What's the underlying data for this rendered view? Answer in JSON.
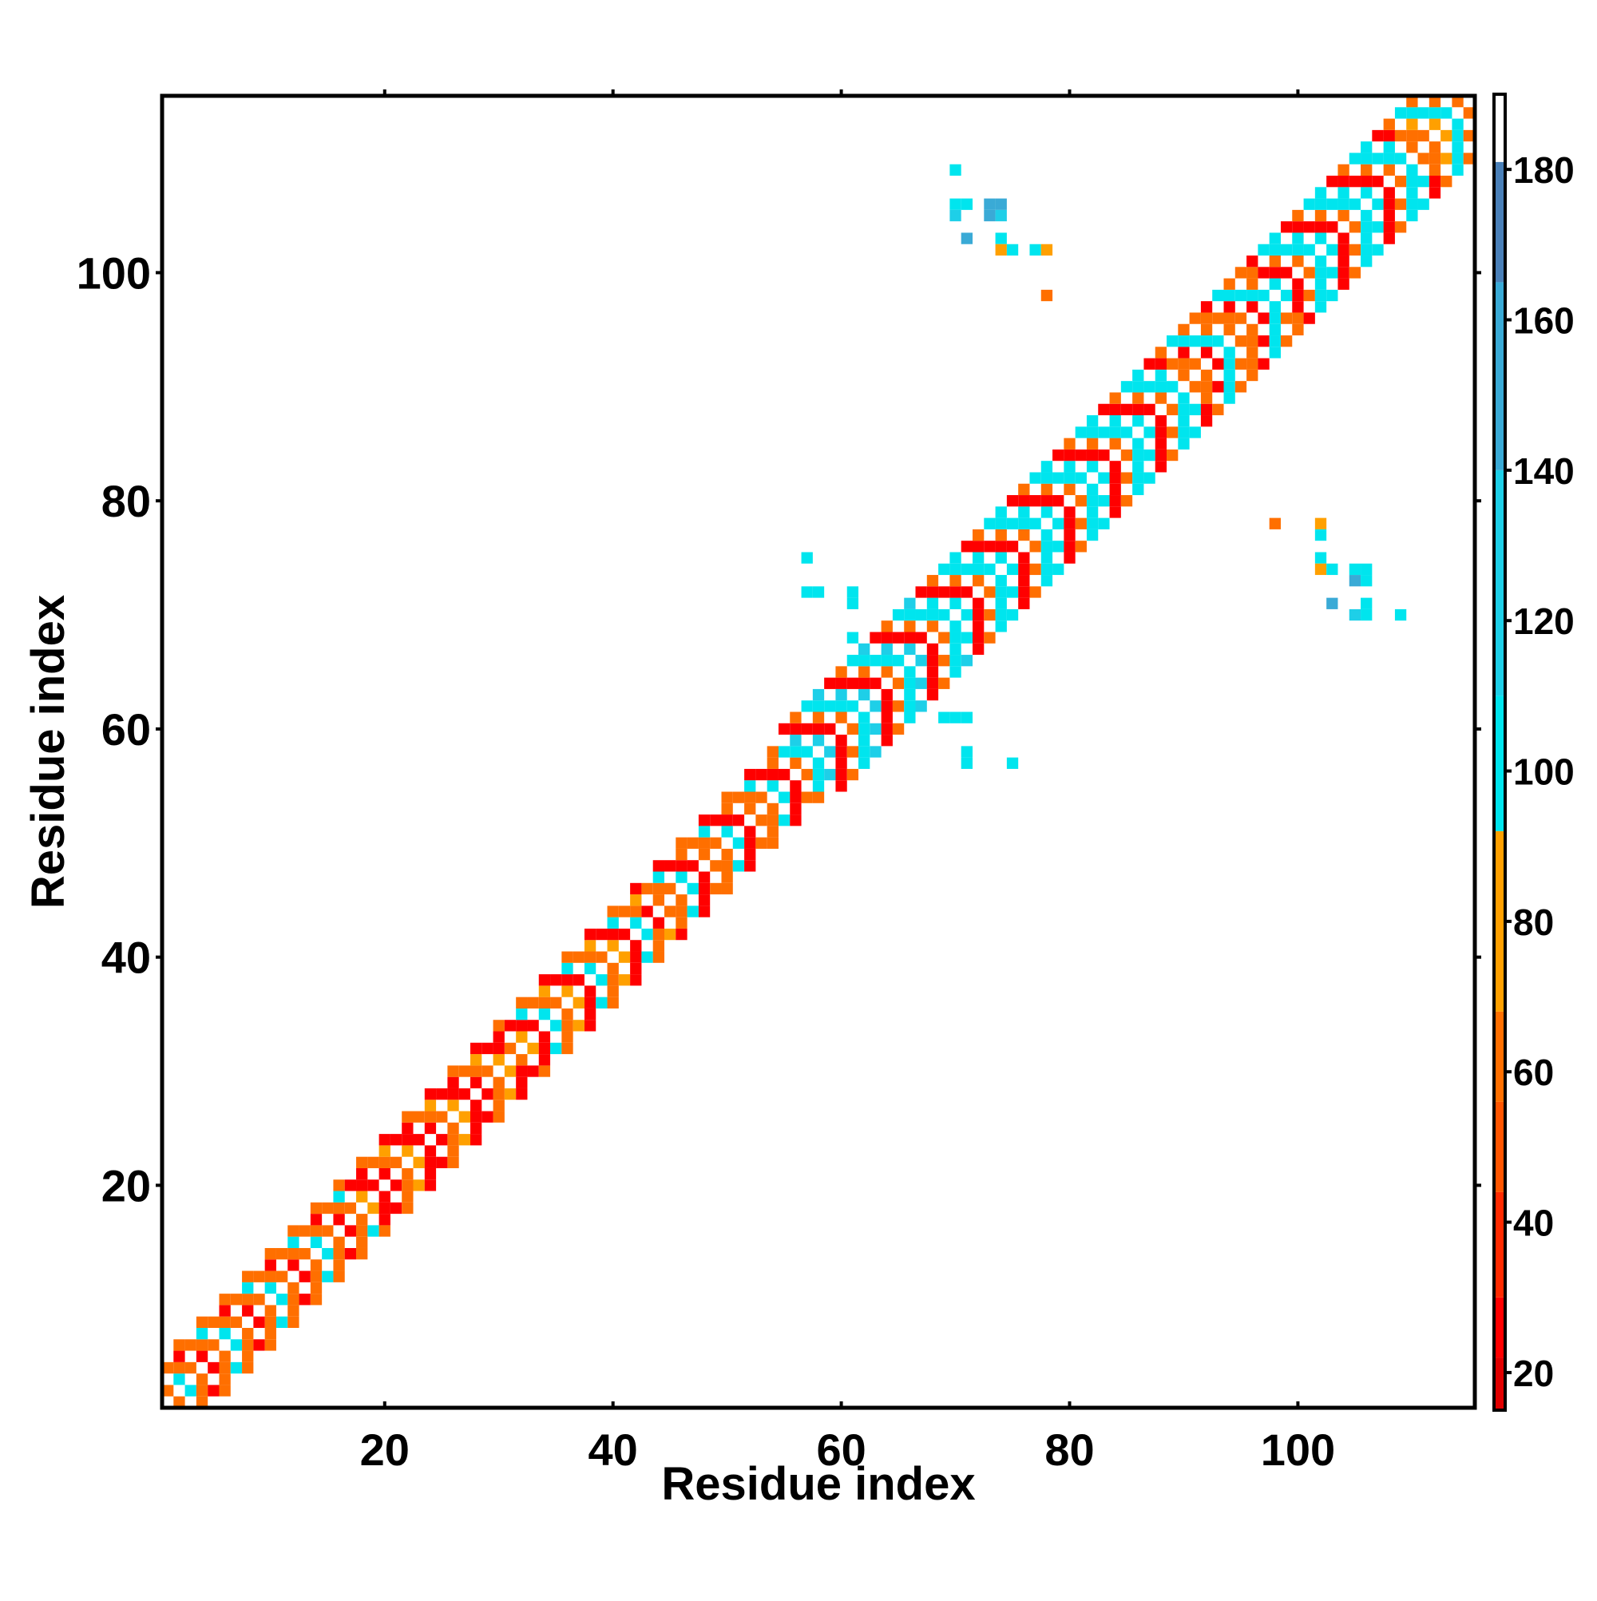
{
  "chart_data": {
    "type": "heatmap",
    "title": "",
    "xlabel": "Residue index",
    "ylabel": "Residue index",
    "xlim": [
      0.5,
      115.5
    ],
    "ylim": [
      0.5,
      115.5
    ],
    "xticks": [
      20,
      40,
      60,
      80,
      100
    ],
    "yticks": [
      20,
      40,
      60,
      80,
      100
    ],
    "colorbar": {
      "range": [
        15,
        190
      ],
      "ticks": [
        20,
        40,
        60,
        80,
        100,
        120,
        140,
        160,
        180
      ],
      "bands": [
        {
          "from": 15,
          "to": 22,
          "color": "#e00000"
        },
        {
          "from": 22,
          "to": 30,
          "color": "#ff0000"
        },
        {
          "from": 30,
          "to": 44,
          "color": "#ff2a00"
        },
        {
          "from": 44,
          "to": 56,
          "color": "#ff5500"
        },
        {
          "from": 56,
          "to": 68,
          "color": "#ff6f00"
        },
        {
          "from": 68,
          "to": 92,
          "color": "#ffa000"
        },
        {
          "from": 92,
          "to": 110,
          "color": "#00e5ee"
        },
        {
          "from": 110,
          "to": 140,
          "color": "#1ecfe8"
        },
        {
          "from": 140,
          "to": 165,
          "color": "#3aaad6"
        },
        {
          "from": 165,
          "to": 181,
          "color": "#4a80b8"
        },
        {
          "from": 181,
          "to": 190,
          "color": "#ffffff"
        }
      ]
    },
    "legend": "colorbar-right",
    "grid": false,
    "cells_description": "Contact map values by residue pair (i, j)",
    "diagonal_segments": [
      {
        "from": 1,
        "to": 16,
        "values": [
          58,
          24,
          58,
          108
        ]
      },
      {
        "from": 17,
        "to": 30,
        "values": [
          24,
          24,
          58,
          78
        ]
      },
      {
        "from": 31,
        "to": 42,
        "values": [
          58,
          78,
          24,
          108
        ]
      },
      {
        "from": 43,
        "to": 54,
        "values": [
          24,
          58,
          58,
          108
        ]
      },
      {
        "from": 55,
        "to": 66,
        "values": [
          24,
          58,
          108,
          124
        ]
      },
      {
        "from": 67,
        "to": 88,
        "values": [
          24,
          58,
          108,
          108
        ]
      },
      {
        "from": 89,
        "to": 96,
        "values": [
          58,
          24,
          108,
          58
        ]
      },
      {
        "from": 97,
        "to": 108,
        "values": [
          24,
          58,
          108,
          108
        ]
      },
      {
        "from": 109,
        "to": 115,
        "values": [
          58,
          78,
          108,
          58
        ]
      }
    ],
    "offdiagonal_cells": [
      [
        70,
        109,
        108
      ],
      [
        70,
        106,
        108
      ],
      [
        71,
        106,
        108
      ],
      [
        70,
        105,
        124
      ],
      [
        73,
        106,
        150
      ],
      [
        74,
        106,
        150
      ],
      [
        73,
        105,
        150
      ],
      [
        74,
        105,
        124
      ],
      [
        71,
        103,
        150
      ],
      [
        74,
        103,
        108
      ],
      [
        74,
        102,
        78
      ],
      [
        75,
        102,
        108
      ],
      [
        77,
        102,
        108
      ],
      [
        78,
        102,
        78
      ],
      [
        78,
        98,
        58
      ],
      [
        57,
        75,
        108
      ],
      [
        57,
        72,
        108
      ],
      [
        58,
        72,
        108
      ],
      [
        61,
        72,
        108
      ],
      [
        61,
        71,
        108
      ],
      [
        61,
        68,
        108
      ],
      [
        69,
        61,
        108
      ],
      [
        70,
        61,
        108
      ],
      [
        71,
        61,
        108
      ],
      [
        71,
        58,
        108
      ],
      [
        71,
        57,
        108
      ],
      [
        75,
        57,
        108
      ],
      [
        98,
        78,
        58
      ],
      [
        102,
        78,
        78
      ],
      [
        102,
        77,
        108
      ],
      [
        102,
        75,
        108
      ],
      [
        102,
        74,
        78
      ],
      [
        103,
        74,
        108
      ],
      [
        105,
        74,
        108
      ],
      [
        106,
        74,
        108
      ],
      [
        105,
        73,
        150
      ],
      [
        106,
        73,
        108
      ],
      [
        103,
        71,
        150
      ],
      [
        106,
        71,
        108
      ],
      [
        105,
        70,
        124
      ],
      [
        106,
        70,
        108
      ],
      [
        109,
        70,
        108
      ]
    ]
  }
}
